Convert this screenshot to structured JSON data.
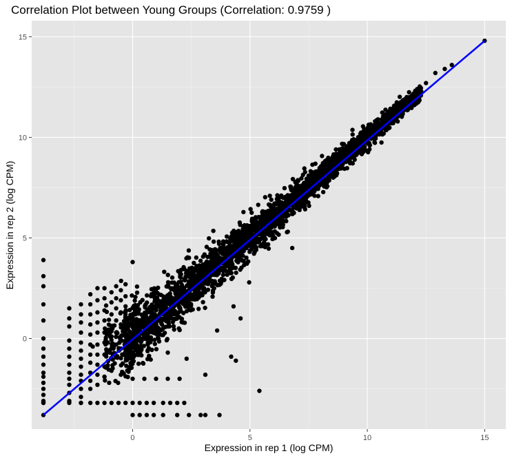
{
  "chart_data": {
    "type": "scatter",
    "title": "Correlation Plot between Young Groups (Correlation: 0.9759 )",
    "xlabel": "Expression in rep 1 (log CPM)",
    "ylabel": "Expression in rep 2 (log CPM)",
    "xlim": [
      -4.3,
      15.9
    ],
    "ylim": [
      -4.5,
      15.8
    ],
    "x_ticks": [
      0,
      5,
      10,
      15
    ],
    "y_ticks": [
      0,
      5,
      10,
      15
    ],
    "grid": true,
    "correlation": 0.9759,
    "fit_line": {
      "color": "#0000ff",
      "x": [
        -3.8,
        15.0
      ],
      "y": [
        -3.8,
        14.8
      ]
    },
    "point_color": "#000000",
    "series": [
      {
        "x": [
          -3.8,
          -3.8,
          -3.8,
          -3.8,
          -3.8,
          -3.8,
          -3.8,
          -3.8,
          -3.8,
          -3.8,
          -3.8,
          -3.8,
          -3.8,
          -3.8,
          -3.8,
          -3.8,
          -3.8,
          -2.7,
          -2.7,
          -2.7,
          -2.7,
          -2.7,
          -2.7,
          -2.7,
          -2.7,
          -2.7,
          -2.7,
          -2.7,
          -2.7,
          -2.2,
          -2.2,
          -2.2,
          -2.2,
          -2.2,
          -2.2,
          -2.2,
          -2.2,
          -2.2,
          -2.2,
          -2.2,
          -2.2,
          -2.2,
          -1.8,
          -1.8,
          -1.8,
          -1.8,
          -1.8,
          -1.8,
          -1.8,
          -1.8,
          -1.8,
          -1.8,
          -1.8,
          -1.5,
          -1.5,
          -1.5,
          -1.5,
          -1.5,
          -1.5,
          -1.5,
          -1.5,
          -1.5,
          -1.5,
          -1.2,
          -1.2,
          -1.2,
          -1.2,
          -1.2,
          -1.2,
          -1.2,
          -1.2,
          -1.2,
          -0.9,
          -0.9,
          -0.9,
          -0.9,
          -0.9,
          -0.9,
          -0.9,
          -0.9,
          -0.7,
          -0.7,
          -0.7,
          -0.7,
          -0.7,
          -0.7,
          -0.7,
          -0.5,
          -0.5,
          -0.5,
          -0.5,
          -0.5,
          -0.5,
          -0.3,
          -0.3,
          -0.3,
          -0.3,
          -0.3,
          0.0,
          0.3,
          0.6,
          0.9,
          1.3,
          1.9,
          2.4,
          2.9,
          3.1,
          0.0,
          0.5,
          1.0,
          1.5,
          2.0,
          -3.8,
          -2.7,
          -2.2,
          -1.8,
          -1.5,
          -1.2,
          -0.9,
          -0.6,
          -0.3,
          0.0,
          0.3,
          0.6,
          0.9,
          1.3,
          1.6,
          1.9,
          2.2,
          5.3,
          5.9,
          6.6,
          7.2,
          7.8,
          8.3,
          9.0,
          9.5,
          10.2,
          10.9,
          11.5,
          12.0,
          12.5,
          12.9,
          13.3,
          13.6,
          15.0,
          3.6,
          4.4,
          5.4,
          6.8,
          9.9,
          3.0,
          3.3,
          3.5,
          1.5,
          2.3,
          1.8,
          4.3,
          4.6,
          3.7,
          4.2,
          3.1,
          0.0,
          -0.5,
          -1.0,
          1.0,
          -1.7,
          -1.1
        ],
        "y": [
          3.9,
          3.1,
          2.6,
          1.7,
          0.9,
          0.0,
          -0.5,
          -0.9,
          -1.3,
          -1.7,
          -1.9,
          -2.2,
          -2.5,
          -2.8,
          -3.1,
          -3.2,
          -3.8,
          1.5,
          1.0,
          0.6,
          -0.1,
          -0.5,
          -0.9,
          -1.3,
          -1.7,
          -2.0,
          -2.3,
          -2.7,
          -3.1,
          1.7,
          1.2,
          0.8,
          0.3,
          -0.2,
          -0.6,
          -1.0,
          -1.4,
          -1.8,
          -2.1,
          -2.5,
          -2.9,
          -3.2,
          2.2,
          1.7,
          1.2,
          0.7,
          0.2,
          -0.3,
          -0.8,
          -1.2,
          -1.7,
          -2.1,
          -2.5,
          2.5,
          1.9,
          1.3,
          0.8,
          0.3,
          -0.3,
          -0.8,
          -1.3,
          -1.8,
          -2.3,
          2.5,
          2.0,
          1.4,
          0.9,
          0.3,
          -0.2,
          -0.8,
          -1.4,
          -1.9,
          2.3,
          1.8,
          1.2,
          0.6,
          0.1,
          -0.5,
          -1.0,
          -1.6,
          2.6,
          2.0,
          1.5,
          0.9,
          0.3,
          -0.3,
          -0.9,
          2.4,
          1.9,
          1.3,
          0.7,
          0.1,
          -0.5,
          2.7,
          2.1,
          1.6,
          1.0,
          0.4,
          -3.8,
          -3.8,
          -3.8,
          -3.8,
          -3.8,
          -3.8,
          -3.8,
          -3.8,
          -3.8,
          -2.0,
          -2.0,
          -2.0,
          -2.0,
          -2.0,
          -3.2,
          -3.2,
          -3.2,
          -3.2,
          -3.2,
          -3.2,
          -3.2,
          -3.2,
          -3.2,
          -3.2,
          -3.2,
          -3.2,
          -3.2,
          -3.2,
          -3.2,
          -3.2,
          -3.2,
          5.7,
          6.3,
          7.1,
          7.6,
          8.3,
          8.7,
          9.4,
          9.8,
          10.5,
          11.1,
          11.8,
          12.2,
          12.7,
          13.2,
          13.4,
          13.6,
          14.8,
          0.4,
          -1.1,
          -2.6,
          4.5,
          10.0,
          3.4,
          3.8,
          4.0,
          -0.7,
          -1.0,
          1.3,
          1.6,
          1.0,
          -3.8,
          -0.9,
          -1.8,
          3.8,
          -1.8,
          -2.2,
          1.5,
          -0.4,
          0.2
        ]
      }
    ]
  }
}
